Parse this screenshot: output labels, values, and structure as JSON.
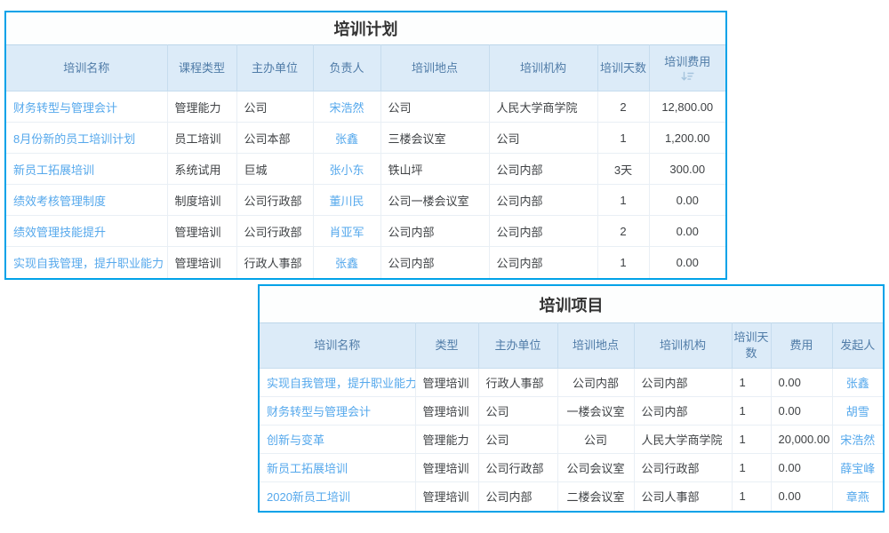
{
  "colors": {
    "frame_border": "#00a2e8",
    "header_background": "#dcebf8",
    "header_text": "#4f7ba7",
    "link_text": "#55a8ec",
    "body_text": "#3f4245",
    "sort_icon": "#a5c4dd"
  },
  "tables": [
    {
      "title": "培训计划",
      "columns": [
        {
          "label": "培训名称",
          "width": 181,
          "align": "left",
          "link": true,
          "sort": false
        },
        {
          "label": "课程类型",
          "width": 78,
          "align": "left",
          "link": false,
          "sort": false
        },
        {
          "label": "主办单位",
          "width": 86,
          "align": "left",
          "link": false,
          "sort": false
        },
        {
          "label": "负责人",
          "width": 76,
          "align": "center",
          "link": true,
          "sort": false
        },
        {
          "label": "培训地点",
          "width": 122,
          "align": "left",
          "link": false,
          "sort": false
        },
        {
          "label": "培训机构",
          "width": 122,
          "align": "left",
          "link": false,
          "sort": false
        },
        {
          "label": "培训天数",
          "width": 58,
          "align": "center",
          "link": false,
          "sort": false
        },
        {
          "label": "培训费用",
          "width": 86,
          "align": "center",
          "link": false,
          "sort": true
        }
      ],
      "rows": [
        [
          "财务转型与管理会计",
          "管理能力",
          "公司",
          "宋浩然",
          "公司",
          "人民大学商学院",
          "2",
          "12,800.00"
        ],
        [
          "8月份新的员工培训计划",
          "员工培训",
          "公司本部",
          "张鑫",
          "三楼会议室",
          "公司",
          "1",
          "1,200.00"
        ],
        [
          "新员工拓展培训",
          "系统试用",
          "巨城",
          "张小东",
          "铁山坪",
          "公司内部",
          "3天",
          "300.00"
        ],
        [
          "绩效考核管理制度",
          "制度培训",
          "公司行政部",
          "董川民",
          "公司一楼会议室",
          "公司内部",
          "1",
          "0.00"
        ],
        [
          "绩效管理技能提升",
          "管理培训",
          "公司行政部",
          "肖亚军",
          "公司内部",
          "公司内部",
          "2",
          "0.00"
        ],
        [
          "实现自我管理，提升职业能力",
          "管理培训",
          "行政人事部",
          "张鑫",
          "公司内部",
          "公司内部",
          "1",
          "0.00"
        ]
      ]
    },
    {
      "title": "培训项目",
      "columns": [
        {
          "label": "培训名称",
          "width": 175,
          "align": "left",
          "link": true,
          "sort": false
        },
        {
          "label": "类型",
          "width": 71,
          "align": "left",
          "link": false,
          "sort": false
        },
        {
          "label": "主办单位",
          "width": 89,
          "align": "left",
          "link": false,
          "sort": false
        },
        {
          "label": "培训地点",
          "width": 86,
          "align": "center",
          "link": false,
          "sort": false
        },
        {
          "label": "培训机构",
          "width": 110,
          "align": "left",
          "link": false,
          "sort": false
        },
        {
          "label": "培训天数",
          "width": 44,
          "align": "left",
          "link": false,
          "sort": false
        },
        {
          "label": "费用",
          "width": 69,
          "align": "left",
          "link": false,
          "sort": false
        },
        {
          "label": "发起人",
          "width": 57,
          "align": "center",
          "link": true,
          "sort": false
        }
      ],
      "rows": [
        [
          "实现自我管理，提升职业能力",
          "管理培训",
          "行政人事部",
          "公司内部",
          "公司内部",
          "1",
          "0.00",
          "张鑫"
        ],
        [
          "财务转型与管理会计",
          "管理培训",
          "公司",
          "一楼会议室",
          "公司内部",
          "1",
          "0.00",
          "胡雪"
        ],
        [
          "创新与变革",
          "管理能力",
          "公司",
          "公司",
          "人民大学商学院",
          "1",
          "20,000.00",
          "宋浩然"
        ],
        [
          "新员工拓展培训",
          "管理培训",
          "公司行政部",
          "公司会议室",
          "公司行政部",
          "1",
          "0.00",
          "薛宝峰"
        ],
        [
          "2020新员工培训",
          "管理培训",
          "公司内部",
          "二楼会议室",
          "公司人事部",
          "1",
          "0.00",
          "章燕"
        ]
      ]
    }
  ]
}
